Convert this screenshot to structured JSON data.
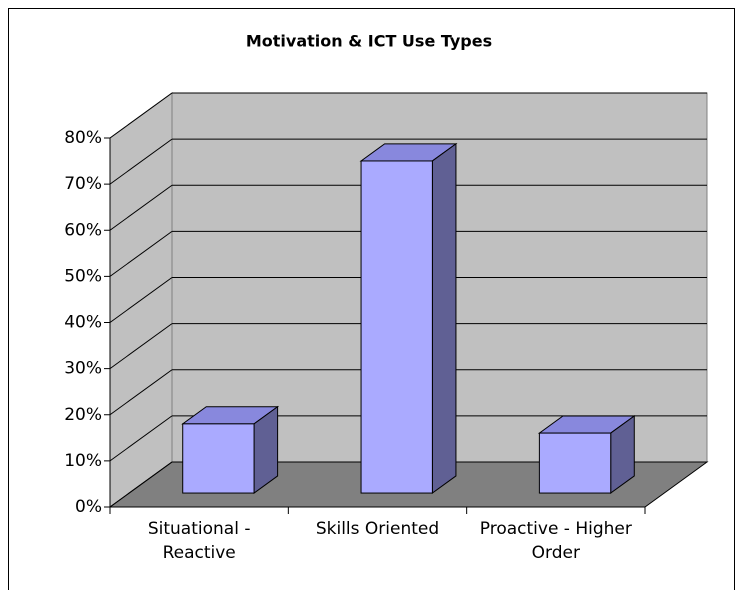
{
  "chart_data": {
    "type": "bar3d",
    "title": "Motivation & ICT Use Types",
    "categories": [
      "Situational - Reactive",
      "Skills Oriented",
      "Proactive - Higher Order"
    ],
    "values": [
      15,
      72,
      13
    ],
    "color": "#aaaaff",
    "ylim": [
      0,
      80
    ],
    "yticks": [
      {
        "value": 0,
        "label": "0%"
      },
      {
        "value": 10,
        "label": "10%"
      },
      {
        "value": 20,
        "label": "20%"
      },
      {
        "value": 30,
        "label": "30%"
      },
      {
        "value": 40,
        "label": "40%"
      },
      {
        "value": 50,
        "label": "50%"
      },
      {
        "value": 60,
        "label": "60%"
      },
      {
        "value": 70,
        "label": "70%"
      },
      {
        "value": 80,
        "label": "80%"
      }
    ],
    "grid": true
  }
}
